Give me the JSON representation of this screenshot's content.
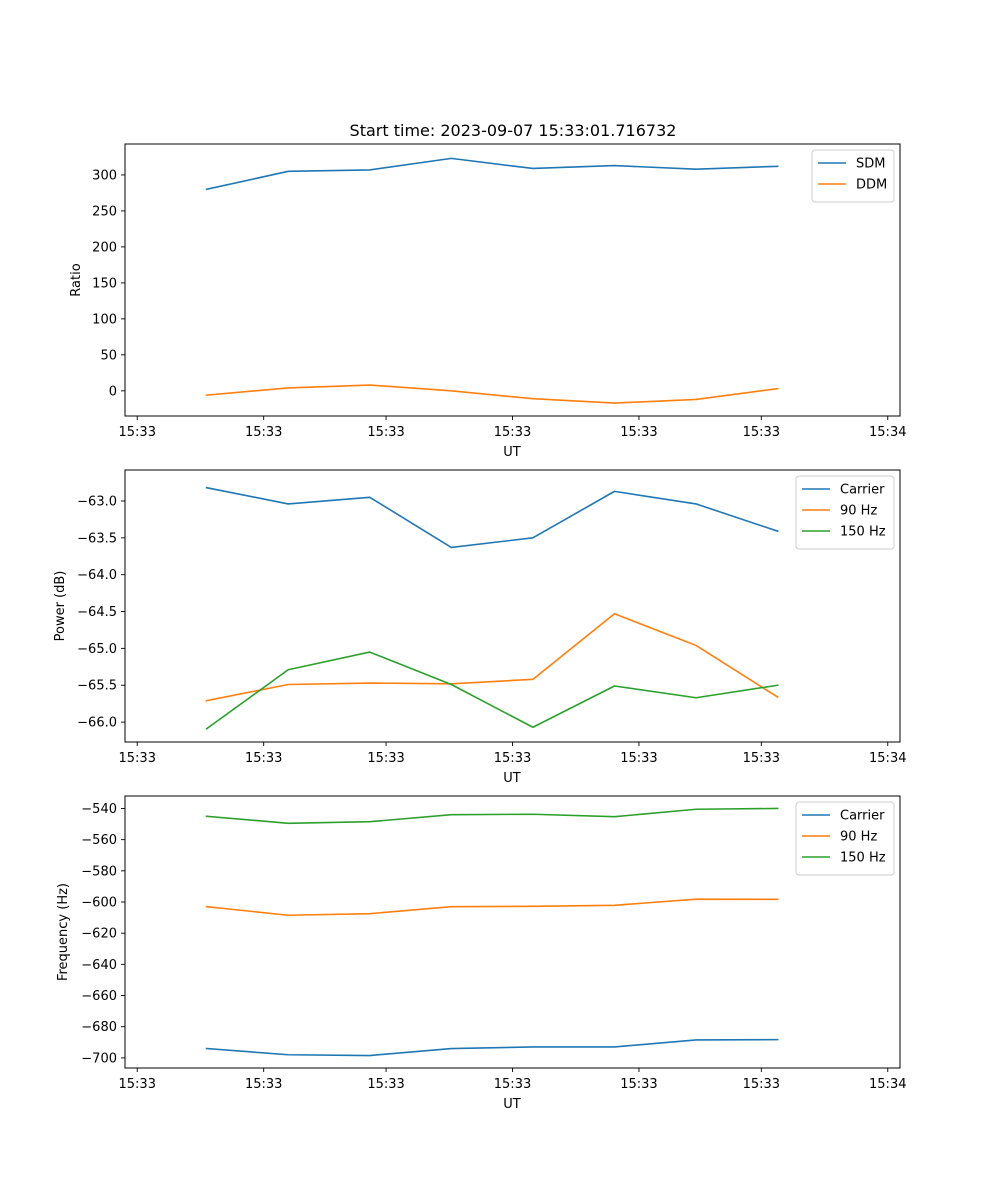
{
  "figure_title": "Start time: 2023-09-07 15:33:01.716732",
  "chart_data": [
    {
      "type": "line",
      "title": "Start time: 2023-09-07 15:33:01.716732",
      "xlabel": "UT",
      "ylabel": "Ratio",
      "x": [
        1,
        2,
        3,
        4,
        5,
        6,
        7,
        8
      ],
      "xlim": [
        0,
        9.5
      ],
      "x_ticks": [
        0.15,
        1.7,
        3.2,
        4.75,
        6.3,
        7.8,
        9.35
      ],
      "x_tick_labels": [
        "15:33",
        "15:33",
        "15:33",
        "15:33",
        "15:33",
        "15:33",
        "15:34"
      ],
      "ylim": [
        -35,
        343
      ],
      "y_ticks": [
        0,
        50,
        100,
        150,
        200,
        250,
        300
      ],
      "y_tick_labels": [
        "0",
        "50",
        "100",
        "150",
        "200",
        "250",
        "300"
      ],
      "legend_position": "top-right",
      "series": [
        {
          "name": "SDM",
          "color": "#1f77b4",
          "values": [
            280,
            305,
            307,
            323,
            309,
            313,
            308,
            312
          ]
        },
        {
          "name": "DDM",
          "color": "#ff7f0e",
          "values": [
            -6,
            4,
            8,
            0,
            -11,
            -17,
            -12,
            3
          ]
        }
      ]
    },
    {
      "type": "line",
      "title": "",
      "xlabel": "UT",
      "ylabel": "Power (dB)",
      "x": [
        1,
        2,
        3,
        4,
        5,
        6,
        7,
        8
      ],
      "xlim": [
        0,
        9.5
      ],
      "x_ticks": [
        0.15,
        1.7,
        3.2,
        4.75,
        6.3,
        7.8,
        9.35
      ],
      "x_tick_labels": [
        "15:33",
        "15:33",
        "15:33",
        "15:33",
        "15:33",
        "15:33",
        "15:34"
      ],
      "ylim": [
        -66.27,
        -62.58
      ],
      "y_ticks": [
        -66.0,
        -65.5,
        -65.0,
        -64.5,
        -64.0,
        -63.5,
        -63.0
      ],
      "y_tick_labels": [
        "−66.0",
        "−65.5",
        "−65.0",
        "−64.5",
        "−64.0",
        "−63.5",
        "−63.0"
      ],
      "legend_position": "top-right",
      "series": [
        {
          "name": "Carrier",
          "color": "#1f77b4",
          "values": [
            -62.82,
            -63.04,
            -62.95,
            -63.63,
            -63.5,
            -62.87,
            -63.04,
            -63.41
          ]
        },
        {
          "name": "90 Hz",
          "color": "#ff7f0e",
          "values": [
            -65.71,
            -65.49,
            -65.47,
            -65.48,
            -65.42,
            -64.53,
            -64.96,
            -65.66
          ]
        },
        {
          "name": "150 Hz",
          "color": "#2ca02c",
          "values": [
            -66.09,
            -65.29,
            -65.05,
            -65.49,
            -66.07,
            -65.51,
            -65.67,
            -65.5
          ]
        }
      ]
    },
    {
      "type": "line",
      "title": "",
      "xlabel": "UT",
      "ylabel": "Frequency (Hz)",
      "x": [
        1,
        2,
        3,
        4,
        5,
        6,
        7,
        8
      ],
      "xlim": [
        0,
        9.5
      ],
      "x_ticks": [
        0.15,
        1.7,
        3.2,
        4.75,
        6.3,
        7.8,
        9.35
      ],
      "x_tick_labels": [
        "15:33",
        "15:33",
        "15:33",
        "15:33",
        "15:33",
        "15:33",
        "15:34"
      ],
      "ylim": [
        -706.5,
        -532
      ],
      "y_ticks": [
        -700,
        -680,
        -660,
        -640,
        -620,
        -600,
        -580,
        -560,
        -540
      ],
      "y_tick_labels": [
        "−700",
        "−680",
        "−660",
        "−640",
        "−620",
        "−600",
        "−580",
        "−560",
        "−540"
      ],
      "legend_position": "top-right",
      "series": [
        {
          "name": "Carrier",
          "color": "#1f77b4",
          "values": [
            -694,
            -698,
            -698.5,
            -694,
            -693,
            -693,
            -688.5,
            -688.3
          ]
        },
        {
          "name": "90 Hz",
          "color": "#ff7f0e",
          "values": [
            -603,
            -608.5,
            -607.5,
            -603,
            -602.8,
            -602.1,
            -598.2,
            -598.3
          ]
        },
        {
          "name": "150 Hz",
          "color": "#2ca02c",
          "values": [
            -545,
            -549.5,
            -548.5,
            -544,
            -543.7,
            -545.3,
            -540.5,
            -540
          ]
        }
      ]
    }
  ]
}
